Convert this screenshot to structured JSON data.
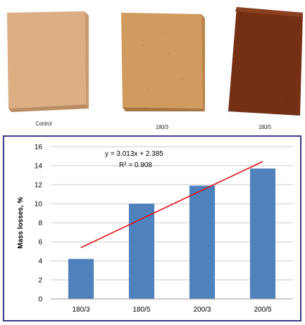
{
  "samples": [
    {
      "label": "Control",
      "color_top": "#d9a77a",
      "color_front": "#e2b58c"
    },
    {
      "label": "180/3",
      "color_top": "#c68b52",
      "color_front": "#d39a5f"
    },
    {
      "label": "180/5",
      "color_top": "#7a3416",
      "color_front": "#6b2c12"
    }
  ],
  "chart_data": {
    "type": "bar",
    "categories": [
      "180/3",
      "180/5",
      "200/3",
      "200/5"
    ],
    "values": [
      4.2,
      10.0,
      11.9,
      13.7
    ],
    "ylabel": "Mass losses, %",
    "xlabel": "",
    "ylim": [
      0,
      16
    ],
    "yticks": [
      0,
      2,
      4,
      6,
      8,
      10,
      12,
      14,
      16
    ],
    "grid": true,
    "bar_color": "#4f81bd",
    "trendline": {
      "equation": "y = 3.013x + 2.385",
      "r2": "R² = 0.908",
      "slope": 3.013,
      "intercept": 2.385,
      "color": "#e01010"
    }
  }
}
